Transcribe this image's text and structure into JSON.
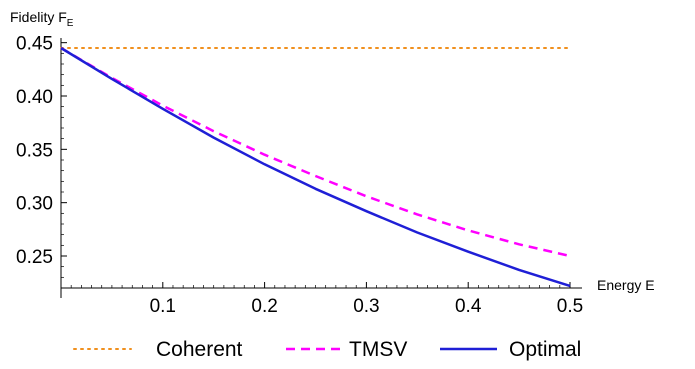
{
  "chart_data": {
    "type": "line",
    "ylabel": "Fidelity F",
    "ylabel_sub": "E",
    "xlabel": "Energy E",
    "xlim": [
      0,
      0.5
    ],
    "ylim": [
      0.22,
      0.45
    ],
    "x_ticks": [
      0.1,
      0.2,
      0.3,
      0.4,
      0.5
    ],
    "x_tick_labels": [
      "0.1",
      "0.2",
      "0.3",
      "0.4",
      "0.5"
    ],
    "y_ticks": [
      0.25,
      0.3,
      0.35,
      0.4,
      0.45
    ],
    "y_tick_labels": [
      "0.25",
      "0.30",
      "0.35",
      "0.40",
      "0.45"
    ],
    "grid": false,
    "legend_position": "bottom",
    "x": [
      0,
      0.05,
      0.1,
      0.15,
      0.2,
      0.25,
      0.3,
      0.35,
      0.4,
      0.45,
      0.5
    ],
    "series": [
      {
        "name": "Coherent",
        "style": "dotted",
        "color": "#f0901e",
        "values": [
          0.445,
          0.445,
          0.445,
          0.445,
          0.445,
          0.445,
          0.445,
          0.445,
          0.445,
          0.445,
          0.445
        ]
      },
      {
        "name": "TMSV",
        "style": "dashed",
        "color": "#ff00ff",
        "values": [
          0.445,
          0.417,
          0.391,
          0.367,
          0.345,
          0.325,
          0.306,
          0.289,
          0.274,
          0.261,
          0.25
        ]
      },
      {
        "name": "Optimal",
        "style": "solid",
        "color": "#1f1fd6",
        "values": [
          0.445,
          0.416,
          0.388,
          0.361,
          0.336,
          0.313,
          0.292,
          0.272,
          0.254,
          0.237,
          0.222
        ]
      }
    ]
  }
}
